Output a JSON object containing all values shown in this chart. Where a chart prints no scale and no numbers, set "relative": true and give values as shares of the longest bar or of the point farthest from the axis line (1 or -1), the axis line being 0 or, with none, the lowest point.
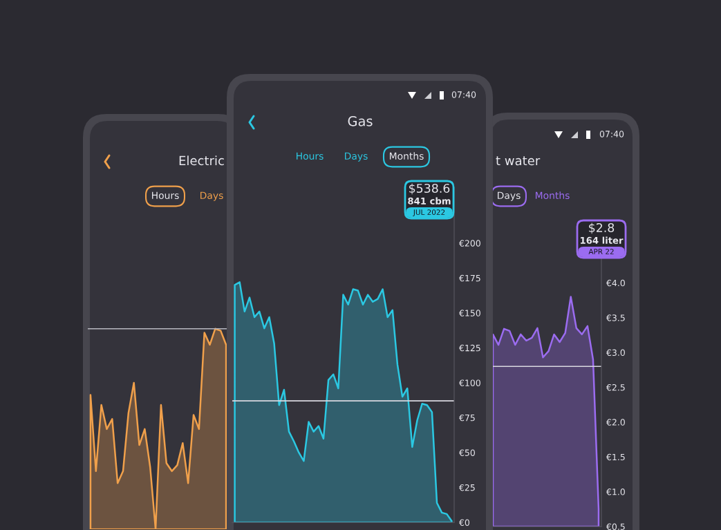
{
  "chart_data": [
    {
      "type": "area",
      "title": "Electric",
      "relative": true,
      "annotations": [
        "Hours",
        "Days"
      ],
      "categories": [
        null,
        null,
        null,
        null,
        null,
        null,
        null,
        null,
        null,
        null,
        null,
        null,
        null,
        null,
        null,
        null,
        null,
        null,
        null,
        null,
        null,
        null,
        null,
        null,
        null,
        null
      ],
      "series": [
        {
          "color": "#f0a04b",
          "values": [
            0.67,
            0.29,
            0.62,
            0.5,
            0.55,
            0.23,
            0.29,
            0.58,
            0.73,
            0.42,
            0.5,
            0.31,
            0,
            0.62,
            0.33,
            0.29,
            0.32,
            0.43,
            0.23,
            0.57,
            0.5,
            0.98,
            0.92,
            1,
            0.99,
            0.92
          ]
        }
      ],
      "ref_lines": [
        {
          "axis": "y",
          "value": 1.0,
          "color": "#b8b8c0"
        }
      ]
    },
    {
      "type": "area",
      "title": "Gas",
      "annotations": [
        "07:40",
        "Hours",
        "Days",
        "Months",
        "$538.6",
        "841 cbm",
        "JUL 2022"
      ],
      "categories": [
        null,
        null,
        null,
        null,
        null,
        null,
        null,
        null,
        null,
        null,
        null,
        null,
        null,
        null,
        null,
        null,
        null,
        null,
        null,
        null,
        null,
        null,
        null,
        null,
        null,
        null,
        null,
        null,
        null,
        null,
        null,
        null,
        null,
        null,
        null,
        null,
        null,
        null,
        null,
        null,
        null,
        null,
        null,
        null,
        null
      ],
      "series": [
        {
          "color": "#2bc8e2",
          "values": [
            170,
            172,
            151,
            161,
            147,
            151,
            139,
            147,
            128,
            84,
            95,
            65,
            58,
            50,
            44,
            72,
            65,
            69,
            60,
            102,
            106,
            96,
            163,
            156,
            167,
            166,
            156,
            163,
            158,
            160,
            167,
            147,
            152,
            113,
            90,
            96,
            54,
            73,
            85,
            84,
            79,
            14,
            7,
            6,
            1
          ]
        }
      ],
      "ylim": [
        0,
        240
      ],
      "yticks": [
        {
          "value": 0,
          "label": "€0"
        },
        {
          "value": 25,
          "label": "€25"
        },
        {
          "value": 50,
          "label": "€50"
        },
        {
          "value": 75,
          "label": "€75"
        },
        {
          "value": 100,
          "label": "€100"
        },
        {
          "value": 125,
          "label": "€125"
        },
        {
          "value": 150,
          "label": "€150"
        },
        {
          "value": 175,
          "label": "€175"
        },
        {
          "value": 200,
          "label": "€200"
        }
      ],
      "ref_lines": [
        {
          "axis": "y",
          "value": 87,
          "color": "#d8d8e0"
        }
      ],
      "tick_labels": "y"
    },
    {
      "type": "area",
      "title": "t water",
      "annotations": [
        "07:40",
        "Days",
        "Months",
        "$2.8",
        "164 liter",
        "APR 22"
      ],
      "categories": [
        null,
        null,
        null,
        null,
        null,
        null,
        null,
        null,
        null,
        null,
        null,
        null,
        null,
        null,
        null,
        null,
        null,
        null,
        null,
        null
      ],
      "series": [
        {
          "color": "#9b6cf0",
          "values": [
            3.26,
            3.11,
            3.34,
            3.31,
            3.11,
            3.26,
            3.17,
            3.21,
            3.35,
            2.93,
            3.02,
            3.26,
            3.15,
            3.28,
            3.8,
            3.35,
            3.26,
            3.38,
            2.9,
            0.75
          ]
        }
      ],
      "ylim": [
        0.5,
        4.5
      ],
      "yticks": [
        {
          "value": 0.5,
          "label": "€0.5"
        },
        {
          "value": 1.0,
          "label": "€1.0"
        },
        {
          "value": 1.5,
          "label": "€1.5"
        },
        {
          "value": 2.0,
          "label": "€2.0"
        },
        {
          "value": 2.5,
          "label": "€2.5"
        },
        {
          "value": 3.0,
          "label": "€3.0"
        },
        {
          "value": 3.5,
          "label": "€3.5"
        },
        {
          "value": 4.0,
          "label": "€4.0"
        }
      ],
      "ref_lines": [
        {
          "axis": "y",
          "value": 2.8,
          "color": "#d8d8e0"
        }
      ],
      "tick_labels": "y"
    }
  ]
}
